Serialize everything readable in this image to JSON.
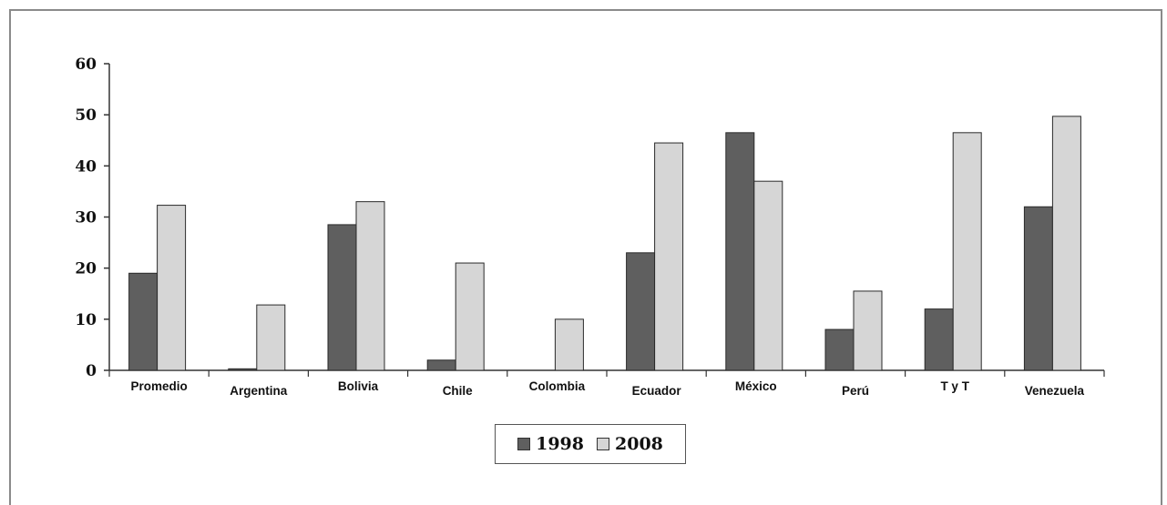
{
  "chart_data": {
    "type": "bar",
    "categories": [
      "Promedio",
      "Argentina",
      "Bolivia",
      "Chile",
      "Colombia",
      "Ecuador",
      "México",
      "Perú",
      "T y T",
      "Venezuela"
    ],
    "series": [
      {
        "name": "1998",
        "values": [
          19,
          0.3,
          28.5,
          2,
          0,
          23,
          46.5,
          8,
          12,
          32
        ]
      },
      {
        "name": "2008",
        "values": [
          32.3,
          12.8,
          33,
          21,
          10,
          44.5,
          37,
          15.5,
          46.5,
          49.7
        ]
      }
    ],
    "yticks": [
      "0",
      "10",
      "20",
      "30",
      "40",
      "50",
      "60"
    ],
    "ylim": [
      0,
      60
    ],
    "title": "",
    "xlabel": "",
    "ylabel": "",
    "grid": false,
    "legend_placement": "bottom-center",
    "colors": {
      "series_1998": "#5f5f5f",
      "series_2008": "#d6d6d6",
      "bar_stroke": "#2a2a2a",
      "axis": "#333333",
      "highlight_label": "#e0314a"
    },
    "highlighted_category": "Perú"
  }
}
